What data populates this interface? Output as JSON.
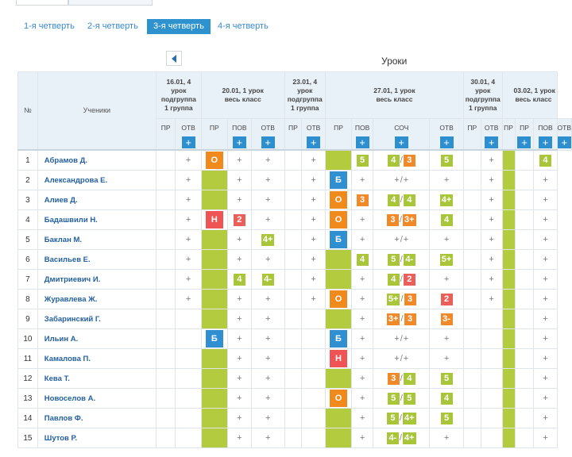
{
  "quarter_tabs": [
    {
      "label": "1-я четверть",
      "active": false
    },
    {
      "label": "2-я четверть",
      "active": false
    },
    {
      "label": "3-я четверть",
      "active": true
    },
    {
      "label": "4-я четверть",
      "active": false
    }
  ],
  "lessons_title": "Уроки",
  "nav_icon": "chevron-left-icon",
  "columns": {
    "num": "№",
    "students": "Ученики",
    "pr": "ПР",
    "otv": "ОТВ",
    "pov": "ПОВ",
    "soch": "СОЧ"
  },
  "dates": [
    {
      "line1": "16.01, 4",
      "line2": "урок",
      "line3": "подгруппа",
      "line4": "1 группа"
    },
    {
      "line1": "20.01, 1 урок",
      "line2": "весь класс",
      "line3": "",
      "line4": ""
    },
    {
      "line1": "23.01, 4",
      "line2": "урок",
      "line3": "подгруппа",
      "line4": "1 группа"
    },
    {
      "line1": "27.01, 1 урок",
      "line2": "весь класс",
      "line3": "",
      "line4": ""
    },
    {
      "line1": "30.01, 4",
      "line2": "урок",
      "line3": "подгруппа",
      "line4": "1 группа"
    },
    {
      "line1": "03.02, 1 урок",
      "line2": "весь класс",
      "line3": "",
      "line4": ""
    }
  ],
  "add_symbol": "+",
  "plus_symbol": "+",
  "colors": {
    "attendance_green": "#b3cc3f",
    "grade_green": "#a9c53a",
    "grade_orange": "#f0892a",
    "grade_red": "#eb5f5a",
    "absence_blue": "#2f8fd1"
  },
  "students": [
    {
      "n": "1",
      "name": "Абрамов Д.",
      "c": [
        {
          "t": "e"
        },
        {
          "t": "p"
        },
        {
          "t": "o",
          "v": "О"
        },
        {
          "t": "p"
        },
        {
          "t": "p"
        },
        {
          "t": "e"
        },
        {
          "t": "p"
        },
        {
          "t": "g"
        },
        {
          "t": "m",
          "m": [
            [
              "5",
              "gr"
            ]
          ]
        },
        {
          "t": "m",
          "m": [
            [
              "4",
              "gr"
            ],
            [
              "3",
              "or"
            ]
          ]
        },
        {
          "t": "m",
          "m": [
            [
              "5",
              "gr"
            ]
          ]
        },
        {
          "t": "e"
        },
        {
          "t": "p"
        },
        {
          "t": "g"
        },
        {
          "t": "m",
          "m": [
            [
              "4",
              "gr"
            ]
          ]
        }
      ]
    },
    {
      "n": "2",
      "name": "Александрова Е.",
      "c": [
        {
          "t": "e"
        },
        {
          "t": "p"
        },
        {
          "t": "g"
        },
        {
          "t": "p"
        },
        {
          "t": "p"
        },
        {
          "t": "e"
        },
        {
          "t": "p"
        },
        {
          "t": "b",
          "v": "Б"
        },
        {
          "t": "p"
        },
        {
          "t": "m",
          "m": [
            [
              "+",
              "pl"
            ],
            [
              "+",
              "pl"
            ]
          ]
        },
        {
          "t": "p"
        },
        {
          "t": "e"
        },
        {
          "t": "p"
        },
        {
          "t": "g"
        },
        {
          "t": "p"
        }
      ]
    },
    {
      "n": "3",
      "name": "Алиев Д.",
      "c": [
        {
          "t": "e"
        },
        {
          "t": "p"
        },
        {
          "t": "g"
        },
        {
          "t": "p"
        },
        {
          "t": "p"
        },
        {
          "t": "e"
        },
        {
          "t": "p"
        },
        {
          "t": "o",
          "v": "О"
        },
        {
          "t": "m",
          "m": [
            [
              "3",
              "or"
            ]
          ]
        },
        {
          "t": "m",
          "m": [
            [
              "4",
              "gr"
            ],
            [
              "4",
              "gr"
            ]
          ]
        },
        {
          "t": "m",
          "m": [
            [
              "4+",
              "gr"
            ]
          ]
        },
        {
          "t": "e"
        },
        {
          "t": "p"
        },
        {
          "t": "g"
        },
        {
          "t": "p"
        }
      ]
    },
    {
      "n": "4",
      "name": "Бадашвили Н.",
      "c": [
        {
          "t": "e"
        },
        {
          "t": "p"
        },
        {
          "t": "r",
          "v": "Н"
        },
        {
          "t": "m",
          "m": [
            [
              "2",
              "rd"
            ]
          ]
        },
        {
          "t": "p"
        },
        {
          "t": "e"
        },
        {
          "t": "p"
        },
        {
          "t": "o",
          "v": "О"
        },
        {
          "t": "p"
        },
        {
          "t": "m",
          "m": [
            [
              "3",
              "or"
            ],
            [
              "3+",
              "or"
            ]
          ]
        },
        {
          "t": "m",
          "m": [
            [
              "4",
              "gr"
            ]
          ]
        },
        {
          "t": "e"
        },
        {
          "t": "p"
        },
        {
          "t": "g"
        },
        {
          "t": "p"
        }
      ]
    },
    {
      "n": "5",
      "name": "Баклан М.",
      "c": [
        {
          "t": "e"
        },
        {
          "t": "p"
        },
        {
          "t": "g"
        },
        {
          "t": "p"
        },
        {
          "t": "m",
          "m": [
            [
              "4+",
              "gr"
            ]
          ]
        },
        {
          "t": "e"
        },
        {
          "t": "p"
        },
        {
          "t": "b",
          "v": "Б"
        },
        {
          "t": "p"
        },
        {
          "t": "m",
          "m": [
            [
              "+",
              "pl"
            ],
            [
              "+",
              "pl"
            ]
          ]
        },
        {
          "t": "p"
        },
        {
          "t": "e"
        },
        {
          "t": "p"
        },
        {
          "t": "g"
        },
        {
          "t": "p"
        }
      ]
    },
    {
      "n": "6",
      "name": "Васильев Е.",
      "c": [
        {
          "t": "e"
        },
        {
          "t": "p"
        },
        {
          "t": "g"
        },
        {
          "t": "p"
        },
        {
          "t": "p"
        },
        {
          "t": "e"
        },
        {
          "t": "p"
        },
        {
          "t": "g"
        },
        {
          "t": "m",
          "m": [
            [
              "4",
              "gr"
            ]
          ]
        },
        {
          "t": "m",
          "m": [
            [
              "5",
              "gr"
            ],
            [
              "4-",
              "gr"
            ]
          ]
        },
        {
          "t": "m",
          "m": [
            [
              "5+",
              "gr"
            ]
          ]
        },
        {
          "t": "e"
        },
        {
          "t": "p"
        },
        {
          "t": "g"
        },
        {
          "t": "p"
        }
      ]
    },
    {
      "n": "7",
      "name": "Дмитриевич И.",
      "c": [
        {
          "t": "e"
        },
        {
          "t": "p"
        },
        {
          "t": "g"
        },
        {
          "t": "m",
          "m": [
            [
              "4",
              "gr"
            ]
          ]
        },
        {
          "t": "m",
          "m": [
            [
              "4-",
              "gr"
            ]
          ]
        },
        {
          "t": "e"
        },
        {
          "t": "p"
        },
        {
          "t": "g"
        },
        {
          "t": "p"
        },
        {
          "t": "m",
          "m": [
            [
              "4",
              "gr"
            ],
            [
              "2",
              "rd"
            ]
          ]
        },
        {
          "t": "p"
        },
        {
          "t": "e"
        },
        {
          "t": "p"
        },
        {
          "t": "g"
        },
        {
          "t": "p"
        }
      ]
    },
    {
      "n": "8",
      "name": "Журавлева Ж.",
      "c": [
        {
          "t": "e"
        },
        {
          "t": "p"
        },
        {
          "t": "g"
        },
        {
          "t": "p"
        },
        {
          "t": "p"
        },
        {
          "t": "e"
        },
        {
          "t": "p"
        },
        {
          "t": "o",
          "v": "О"
        },
        {
          "t": "p"
        },
        {
          "t": "m",
          "m": [
            [
              "5+",
              "gr"
            ],
            [
              "3",
              "or"
            ]
          ]
        },
        {
          "t": "m",
          "m": [
            [
              "2",
              "rd"
            ]
          ]
        },
        {
          "t": "e"
        },
        {
          "t": "p"
        },
        {
          "t": "g"
        },
        {
          "t": "p"
        }
      ]
    },
    {
      "n": "9",
      "name": "Забаринский Г.",
      "c": [
        {
          "t": "e"
        },
        {
          "t": "e"
        },
        {
          "t": "g"
        },
        {
          "t": "p"
        },
        {
          "t": "p"
        },
        {
          "t": "e"
        },
        {
          "t": "e"
        },
        {
          "t": "g"
        },
        {
          "t": "p"
        },
        {
          "t": "m",
          "m": [
            [
              "3+",
              "or"
            ],
            [
              "3",
              "or"
            ]
          ]
        },
        {
          "t": "m",
          "m": [
            [
              "3-",
              "or"
            ]
          ]
        },
        {
          "t": "e"
        },
        {
          "t": "e"
        },
        {
          "t": "g"
        },
        {
          "t": "p"
        }
      ]
    },
    {
      "n": "10",
      "name": "Ильин А.",
      "c": [
        {
          "t": "e"
        },
        {
          "t": "e"
        },
        {
          "t": "b",
          "v": "Б"
        },
        {
          "t": "p"
        },
        {
          "t": "p"
        },
        {
          "t": "e"
        },
        {
          "t": "e"
        },
        {
          "t": "b",
          "v": "Б"
        },
        {
          "t": "p"
        },
        {
          "t": "m",
          "m": [
            [
              "+",
              "pl"
            ],
            [
              "+",
              "pl"
            ]
          ]
        },
        {
          "t": "p"
        },
        {
          "t": "e"
        },
        {
          "t": "e"
        },
        {
          "t": "g"
        },
        {
          "t": "p"
        }
      ]
    },
    {
      "n": "11",
      "name": "Камалова П.",
      "c": [
        {
          "t": "e"
        },
        {
          "t": "e"
        },
        {
          "t": "g"
        },
        {
          "t": "p"
        },
        {
          "t": "p"
        },
        {
          "t": "e"
        },
        {
          "t": "e"
        },
        {
          "t": "r",
          "v": "Н"
        },
        {
          "t": "p"
        },
        {
          "t": "m",
          "m": [
            [
              "+",
              "pl"
            ],
            [
              "+",
              "pl"
            ]
          ]
        },
        {
          "t": "p"
        },
        {
          "t": "e"
        },
        {
          "t": "e"
        },
        {
          "t": "g"
        },
        {
          "t": "p"
        }
      ]
    },
    {
      "n": "12",
      "name": "Кева Т.",
      "c": [
        {
          "t": "e"
        },
        {
          "t": "e"
        },
        {
          "t": "g"
        },
        {
          "t": "p"
        },
        {
          "t": "p"
        },
        {
          "t": "e"
        },
        {
          "t": "e"
        },
        {
          "t": "g"
        },
        {
          "t": "p"
        },
        {
          "t": "m",
          "m": [
            [
              "3",
              "or"
            ],
            [
              "4",
              "gr"
            ]
          ]
        },
        {
          "t": "m",
          "m": [
            [
              "5",
              "gr"
            ]
          ]
        },
        {
          "t": "e"
        },
        {
          "t": "e"
        },
        {
          "t": "g"
        },
        {
          "t": "p"
        }
      ]
    },
    {
      "n": "13",
      "name": "Новоселов А.",
      "c": [
        {
          "t": "e"
        },
        {
          "t": "e"
        },
        {
          "t": "g"
        },
        {
          "t": "p"
        },
        {
          "t": "p"
        },
        {
          "t": "e"
        },
        {
          "t": "e"
        },
        {
          "t": "o",
          "v": "О"
        },
        {
          "t": "p"
        },
        {
          "t": "m",
          "m": [
            [
              "5",
              "gr"
            ],
            [
              "5",
              "gr"
            ]
          ]
        },
        {
          "t": "m",
          "m": [
            [
              "4",
              "gr"
            ]
          ]
        },
        {
          "t": "e"
        },
        {
          "t": "e"
        },
        {
          "t": "g"
        },
        {
          "t": "p"
        }
      ]
    },
    {
      "n": "14",
      "name": "Павлов Ф.",
      "c": [
        {
          "t": "e"
        },
        {
          "t": "e"
        },
        {
          "t": "g"
        },
        {
          "t": "p"
        },
        {
          "t": "p"
        },
        {
          "t": "e"
        },
        {
          "t": "e"
        },
        {
          "t": "g"
        },
        {
          "t": "p"
        },
        {
          "t": "m",
          "m": [
            [
              "5",
              "gr"
            ],
            [
              "4+",
              "gr"
            ]
          ]
        },
        {
          "t": "m",
          "m": [
            [
              "5",
              "gr"
            ]
          ]
        },
        {
          "t": "e"
        },
        {
          "t": "e"
        },
        {
          "t": "g"
        },
        {
          "t": "p"
        }
      ]
    },
    {
      "n": "15",
      "name": "Шутов Р.",
      "c": [
        {
          "t": "e"
        },
        {
          "t": "e"
        },
        {
          "t": "g"
        },
        {
          "t": "p"
        },
        {
          "t": "p"
        },
        {
          "t": "e"
        },
        {
          "t": "e"
        },
        {
          "t": "g"
        },
        {
          "t": "p"
        },
        {
          "t": "m",
          "m": [
            [
              "4-",
              "gr"
            ],
            [
              "4+",
              "gr"
            ]
          ]
        },
        {
          "t": "p"
        },
        {
          "t": "e"
        },
        {
          "t": "e"
        },
        {
          "t": "g"
        },
        {
          "t": "p"
        }
      ]
    }
  ]
}
